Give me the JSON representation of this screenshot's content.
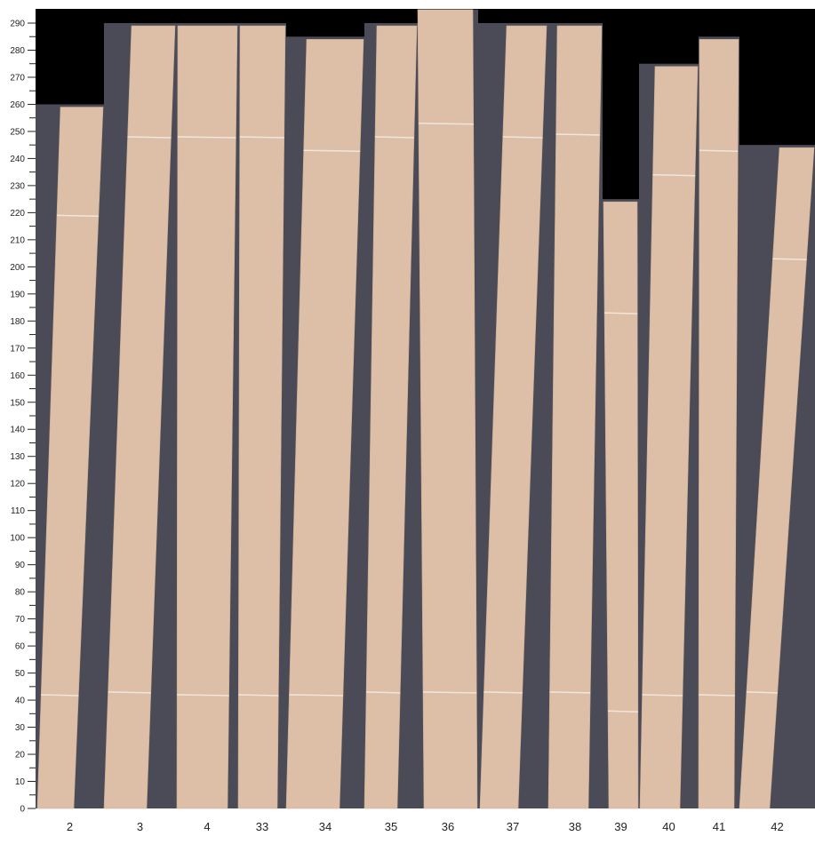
{
  "y_axis": {
    "min": 0,
    "max": 290,
    "major_step": 10,
    "minor_step": 5,
    "tick_labels": [
      "0",
      "10",
      "20",
      "30",
      "40",
      "50",
      "60",
      "70",
      "80",
      "90",
      "100",
      "110",
      "120",
      "130",
      "140",
      "150",
      "160",
      "170",
      "180",
      "190",
      "200",
      "210",
      "220",
      "230",
      "240",
      "250",
      "260",
      "270",
      "280",
      "290"
    ]
  },
  "colors": {
    "background_empty": "#000000",
    "panel": "#4b4b57",
    "wood": "#dcbfa6",
    "splice_line": "#f1e6dc"
  },
  "strips": [
    {
      "label": "2",
      "panel_length": 260,
      "wood_length": 259,
      "splices": [
        42,
        219
      ]
    },
    {
      "label": "3",
      "panel_length": 290,
      "wood_length": 289,
      "splices": [
        43,
        248
      ]
    },
    {
      "label": "4",
      "panel_length": 290,
      "wood_length": 289,
      "splices": [
        42,
        248
      ]
    },
    {
      "label": "33",
      "panel_length": 290,
      "wood_length": 289,
      "splices": [
        42,
        248
      ]
    },
    {
      "label": "34",
      "panel_length": 285,
      "wood_length": 284,
      "splices": [
        42,
        243
      ]
    },
    {
      "label": "35",
      "panel_length": 290,
      "wood_length": 289,
      "splices": [
        43,
        248
      ]
    },
    {
      "label": "36",
      "panel_length": 295,
      "wood_length": 295,
      "splices": [
        43,
        253
      ]
    },
    {
      "label": "37",
      "panel_length": 290,
      "wood_length": 289,
      "splices": [
        43,
        248
      ]
    },
    {
      "label": "38",
      "panel_length": 290,
      "wood_length": 289,
      "splices": [
        43,
        249
      ]
    },
    {
      "label": "39",
      "panel_length": 225,
      "wood_length": 224,
      "splices": [
        36,
        183
      ]
    },
    {
      "label": "40",
      "panel_length": 275,
      "wood_length": 274,
      "splices": [
        42,
        234
      ]
    },
    {
      "label": "41",
      "panel_length": 285,
      "wood_length": 284,
      "splices": [
        42,
        243
      ]
    },
    {
      "label": "42",
      "panel_length": 245,
      "wood_length": 244,
      "splices": [
        43,
        203
      ]
    }
  ]
}
